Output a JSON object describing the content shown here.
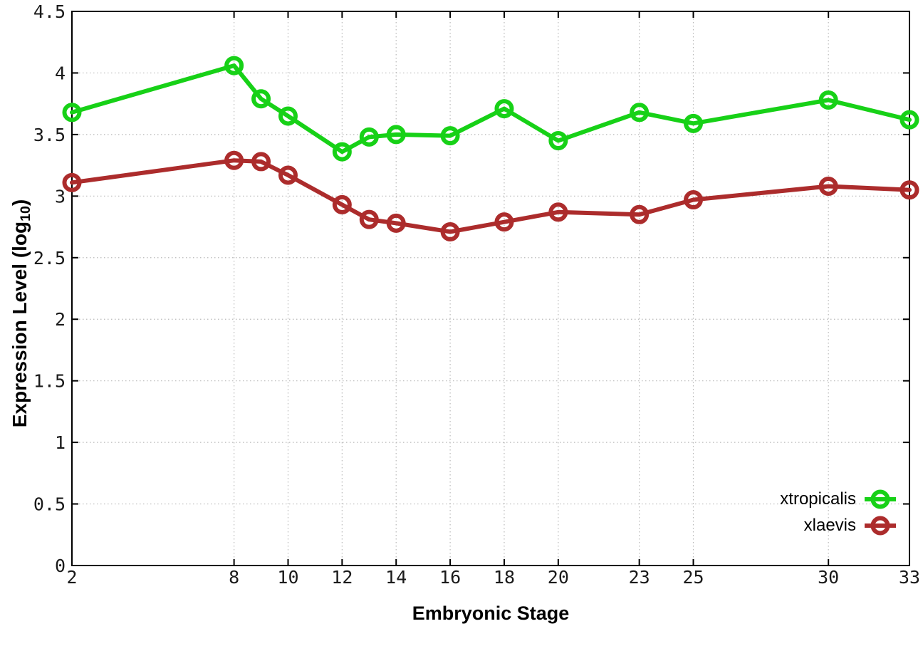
{
  "figure": {
    "background": "#ffffff",
    "xlabel": "Embryonic Stage",
    "ylabel_prefix": "Expression Level (log",
    "ylabel_subscript": "10",
    "ylabel_suffix": ")"
  },
  "chart_data": {
    "type": "line",
    "title": "",
    "xlabel": "Embryonic Stage",
    "ylabel": "Expression Level (log10)",
    "x": [
      2,
      8,
      9,
      10,
      12,
      13,
      14,
      16,
      18,
      20,
      23,
      25,
      30,
      33
    ],
    "series": [
      {
        "name": "xtropicalis",
        "color": "#17d117",
        "values": [
          3.68,
          4.06,
          3.79,
          3.65,
          3.36,
          3.48,
          3.5,
          3.49,
          3.71,
          3.45,
          3.68,
          3.59,
          3.78,
          3.62
        ]
      },
      {
        "name": "xlaevis",
        "color": "#ac2c2c",
        "values": [
          3.11,
          3.29,
          3.28,
          3.17,
          2.93,
          2.81,
          2.78,
          2.71,
          2.79,
          2.87,
          2.85,
          2.97,
          3.08,
          3.05
        ]
      }
    ],
    "xlim": [
      2,
      33
    ],
    "ylim": [
      0,
      4.5
    ],
    "xtick_labels": [
      "2",
      "8",
      "10",
      "12",
      "14",
      "16",
      "18",
      "20",
      "23",
      "25",
      "30",
      "33"
    ],
    "ytick_labels": [
      "0",
      "0.5",
      "1",
      "1.5",
      "2",
      "2.5",
      "3",
      "3.5",
      "4",
      "4.5"
    ],
    "grid": true,
    "legend_position": "inside-bottom-right",
    "marker": "open-circle",
    "line_width": 6,
    "marker_radius": 10.5,
    "marker_stroke": 6,
    "colors": {
      "grid": "#b9b9b9",
      "axis": "#000000",
      "tick_text": "#1a1a1a"
    }
  }
}
